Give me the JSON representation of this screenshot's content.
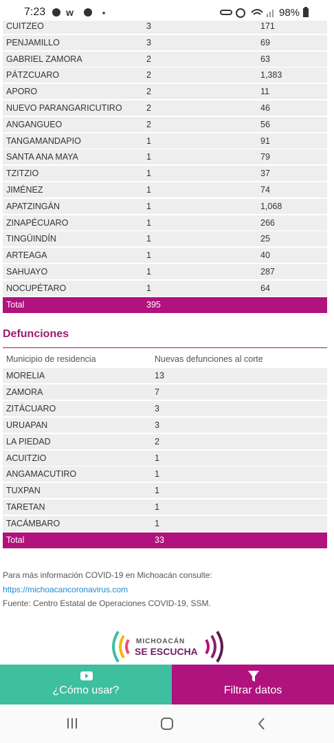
{
  "status_bar": {
    "time": "7:23",
    "battery": "98%"
  },
  "table1": {
    "rows": [
      [
        "CUITZEO",
        "3",
        "171"
      ],
      [
        "PENJAMILLO",
        "3",
        "69"
      ],
      [
        "GABRIEL ZAMORA",
        "2",
        "63"
      ],
      [
        "PÁTZCUARO",
        "2",
        "1,383"
      ],
      [
        "APORO",
        "2",
        "11"
      ],
      [
        "NUEVO PARANGARICUTIRO",
        "2",
        "46"
      ],
      [
        "ANGANGUEO",
        "2",
        "56"
      ],
      [
        "TANGAMANDAPIO",
        "1",
        "91"
      ],
      [
        "SANTA ANA MAYA",
        "1",
        "79"
      ],
      [
        "TZITZIO",
        "1",
        "37"
      ],
      [
        "JIMÉNEZ",
        "1",
        "74"
      ],
      [
        "APATZINGÁN",
        "1",
        "1,068"
      ],
      [
        "ZINAPÉCUARO",
        "1",
        "266"
      ],
      [
        "TINGÜINDÍN",
        "1",
        "25"
      ],
      [
        "ARTEAGA",
        "1",
        "40"
      ],
      [
        "SAHUAYO",
        "1",
        "287"
      ],
      [
        "NOCUPÉTARO",
        "1",
        "64"
      ]
    ],
    "total": [
      "Total",
      "395"
    ]
  },
  "defunciones": {
    "title": "Defunciones",
    "header": [
      "Municipio de residencia",
      "Nuevas defunciones al corte"
    ],
    "rows": [
      [
        "MORELIA",
        "13"
      ],
      [
        "ZAMORA",
        "7"
      ],
      [
        "ZITÁCUARO",
        "3"
      ],
      [
        "URUAPAN",
        "3"
      ],
      [
        "LA PIEDAD",
        "2"
      ],
      [
        "ACUITZIO",
        "1"
      ],
      [
        "ANGAMACUTIRO",
        "1"
      ],
      [
        "TUXPAN",
        "1"
      ],
      [
        "TARETAN",
        "1"
      ],
      [
        "TACÁMBARO",
        "1"
      ]
    ],
    "total": [
      "Total",
      "33"
    ]
  },
  "footer": {
    "text": "Para más información COVID-19 en Michoacán consulte:",
    "link": "https://michoacancoronavirus.com",
    "source": "Fuente: Centro Estatal de Operaciones COVID-19, SSM."
  },
  "logo": {
    "line1": "MICHOACÁN",
    "line2": "SE ESCUCHA"
  },
  "buttons": [
    "¿Cómo usar?",
    "Filtrar datos"
  ]
}
